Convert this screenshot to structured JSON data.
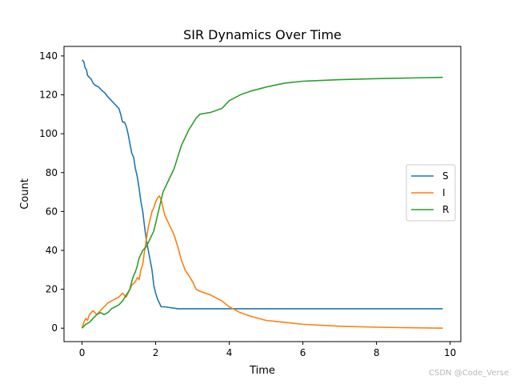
{
  "chart_data": {
    "type": "line",
    "title": "SIR Dynamics Over Time",
    "xlabel": "Time",
    "ylabel": "Count",
    "xlim": [
      -0.49,
      10.29
    ],
    "ylim": [
      -6.9,
      144.9
    ],
    "xticks": [
      0,
      2,
      4,
      6,
      8,
      10
    ],
    "yticks": [
      0,
      20,
      40,
      60,
      80,
      100,
      120,
      140
    ],
    "legend_position": "center-right",
    "grid": false,
    "series": [
      {
        "name": "S",
        "color": "#1f77b4",
        "x": [
          0,
          0.05,
          0.08,
          0.12,
          0.15,
          0.2,
          0.25,
          0.3,
          0.35,
          0.45,
          0.55,
          0.62,
          0.7,
          0.75,
          0.8,
          0.85,
          0.9,
          0.95,
          1.0,
          1.05,
          1.1,
          1.15,
          1.2,
          1.25,
          1.3,
          1.35,
          1.4,
          1.45,
          1.5,
          1.55,
          1.6,
          1.65,
          1.7,
          1.75,
          1.8,
          1.85,
          1.9,
          1.95,
          2.0,
          2.05,
          2.1,
          2.15,
          2.2,
          2.25,
          2.6,
          9.8
        ],
        "y": [
          138,
          137,
          134,
          133,
          130,
          129,
          128,
          126,
          125,
          124,
          122,
          121,
          119,
          118,
          117,
          116,
          115,
          114,
          113,
          110,
          106,
          106,
          104,
          100,
          95,
          90,
          88,
          82,
          78,
          72,
          65,
          60,
          52,
          45,
          40,
          35,
          30,
          22,
          18,
          15,
          13,
          11,
          11,
          11,
          10,
          10
        ]
      },
      {
        "name": "I",
        "color": "#ff7f0e",
        "x": [
          0,
          0.05,
          0.1,
          0.15,
          0.2,
          0.25,
          0.3,
          0.4,
          0.5,
          0.6,
          0.7,
          0.8,
          0.9,
          1.0,
          1.05,
          1.1,
          1.15,
          1.2,
          1.25,
          1.3,
          1.35,
          1.4,
          1.45,
          1.5,
          1.55,
          1.6,
          1.65,
          1.7,
          1.75,
          1.8,
          1.85,
          1.9,
          1.95,
          2.0,
          2.05,
          2.1,
          2.15,
          2.2,
          2.25,
          2.3,
          2.35,
          2.4,
          2.5,
          2.6,
          2.7,
          2.8,
          2.9,
          3.0,
          3.1,
          3.2,
          3.5,
          3.8,
          4.0,
          4.3,
          4.6,
          5.0,
          5.5,
          6.0,
          7.0,
          8.0,
          9.0,
          9.8
        ],
        "y": [
          0,
          3,
          5,
          4,
          7,
          8,
          9,
          7,
          9,
          11,
          13,
          14,
          15,
          16,
          17,
          18,
          17,
          16,
          18,
          20,
          22,
          23,
          24,
          26,
          25,
          30,
          33,
          40,
          46,
          52,
          56,
          60,
          62,
          65,
          67,
          68,
          66,
          62,
          58,
          56,
          54,
          52,
          48,
          42,
          35,
          30,
          27,
          24,
          20,
          19,
          17,
          14,
          11,
          8,
          6,
          4,
          3,
          2,
          1,
          0.5,
          0.2,
          0
        ],
        "name_note": ""
      },
      {
        "name": "R",
        "color": "#2ca02c",
        "x": [
          0,
          0.1,
          0.2,
          0.3,
          0.4,
          0.5,
          0.6,
          0.7,
          0.8,
          0.9,
          1.0,
          1.1,
          1.2,
          1.3,
          1.35,
          1.4,
          1.45,
          1.5,
          1.55,
          1.6,
          1.65,
          1.7,
          1.75,
          1.8,
          1.85,
          1.9,
          1.95,
          2.0,
          2.05,
          2.1,
          2.15,
          2.2,
          2.25,
          2.3,
          2.35,
          2.4,
          2.45,
          2.5,
          2.55,
          2.6,
          2.65,
          2.7,
          2.8,
          2.9,
          3.0,
          3.1,
          3.2,
          3.5,
          3.8,
          4.0,
          4.3,
          4.6,
          5.0,
          5.5,
          6.0,
          7.0,
          8.0,
          9.0,
          9.8
        ],
        "y": [
          0,
          2,
          3,
          5,
          7,
          8,
          7,
          8,
          10,
          11,
          12,
          14,
          17,
          20,
          24,
          27,
          29,
          32,
          36,
          38,
          40,
          41,
          42,
          44,
          46,
          48,
          50,
          54,
          58,
          62,
          66,
          70,
          72,
          74,
          76,
          78,
          80,
          82,
          85,
          88,
          91,
          94,
          98,
          102,
          105,
          108,
          110,
          111,
          113,
          117,
          120,
          122,
          124,
          126,
          127,
          127.8,
          128.3,
          128.7,
          129
        ]
      }
    ]
  },
  "watermark": "CSDN @Code_Verse"
}
